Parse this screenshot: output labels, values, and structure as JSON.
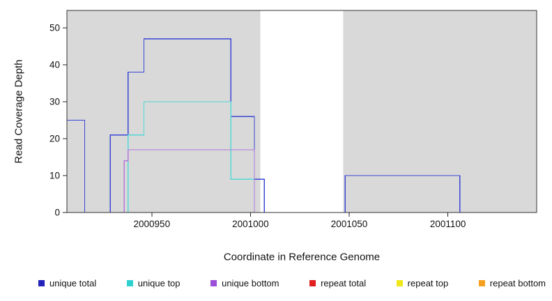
{
  "chart_data": {
    "type": "line",
    "subtype": "step-coverage",
    "title": "",
    "xlabel": "Coordinate in Reference Genome",
    "ylabel": "Read Coverage Depth",
    "xlim": [
      2000907,
      2001145
    ],
    "ylim": [
      0,
      54.7
    ],
    "x_ticks": [
      2000950,
      2001000,
      2001050,
      2001100
    ],
    "y_ticks": [
      0,
      10,
      20,
      30,
      40,
      50
    ],
    "grid": false,
    "legend_position": "bottom",
    "plot_bg_color": "#d9d9d9",
    "page_bg_color": "#ffffff",
    "border_color": "#333333",
    "tick_color": "#222222",
    "highlight_band": {
      "x0": 2001005,
      "x1": 2001047,
      "color": "#ffffff"
    },
    "series": [
      {
        "id": "unique-total",
        "name": "unique total",
        "color": "#3a46d4",
        "runs": [
          [
            2000907,
            2000916,
            25
          ],
          [
            2000916,
            2000929,
            0
          ],
          [
            2000929,
            2000938,
            21
          ],
          [
            2000938,
            2000946,
            38
          ],
          [
            2000946,
            2000990,
            47
          ],
          [
            2000990,
            2001002,
            26
          ],
          [
            2001002,
            2001007,
            9
          ],
          [
            2001007,
            2001048,
            0
          ],
          [
            2001048,
            2001106,
            10
          ],
          [
            2001106,
            2001145,
            0
          ]
        ]
      },
      {
        "id": "unique-top",
        "name": "unique top",
        "color": "#52d8d6",
        "runs": [
          [
            2000907,
            2000938,
            0
          ],
          [
            2000938,
            2000946,
            21
          ],
          [
            2000946,
            2000990,
            30
          ],
          [
            2000990,
            2001002,
            9
          ],
          [
            2001002,
            2001145,
            0
          ]
        ]
      },
      {
        "id": "unique-bottom",
        "name": "unique bottom",
        "color": "#b478de",
        "runs": [
          [
            2000907,
            2000936,
            0
          ],
          [
            2000936,
            2000938,
            14
          ],
          [
            2000938,
            2001002,
            17
          ],
          [
            2001002,
            2001145,
            0
          ]
        ]
      },
      {
        "id": "repeat-top",
        "name": "repeat top",
        "color": "#f0e71a",
        "runs": [
          [
            2000907,
            2001145,
            0
          ]
        ]
      },
      {
        "id": "repeat-total",
        "name": "repeat total",
        "color": "#e01f1f",
        "runs": [
          [
            2000907,
            2001145,
            0
          ]
        ]
      },
      {
        "id": "repeat-bottom",
        "name": "repeat bottom",
        "color": "#f5a11f",
        "runs": [
          [
            2000941,
            2001001,
            0
          ]
        ]
      }
    ]
  },
  "legend": {
    "items": [
      {
        "label": "unique total",
        "color": "#2222bb"
      },
      {
        "label": "unique top",
        "color": "#30cfcf"
      },
      {
        "label": "unique bottom",
        "color": "#9b4fd6"
      },
      {
        "label": "repeat total",
        "color": "#e01f1f"
      },
      {
        "label": "repeat top",
        "color": "#f0e71a"
      },
      {
        "label": "repeat bottom",
        "color": "#f5a11f"
      }
    ]
  }
}
